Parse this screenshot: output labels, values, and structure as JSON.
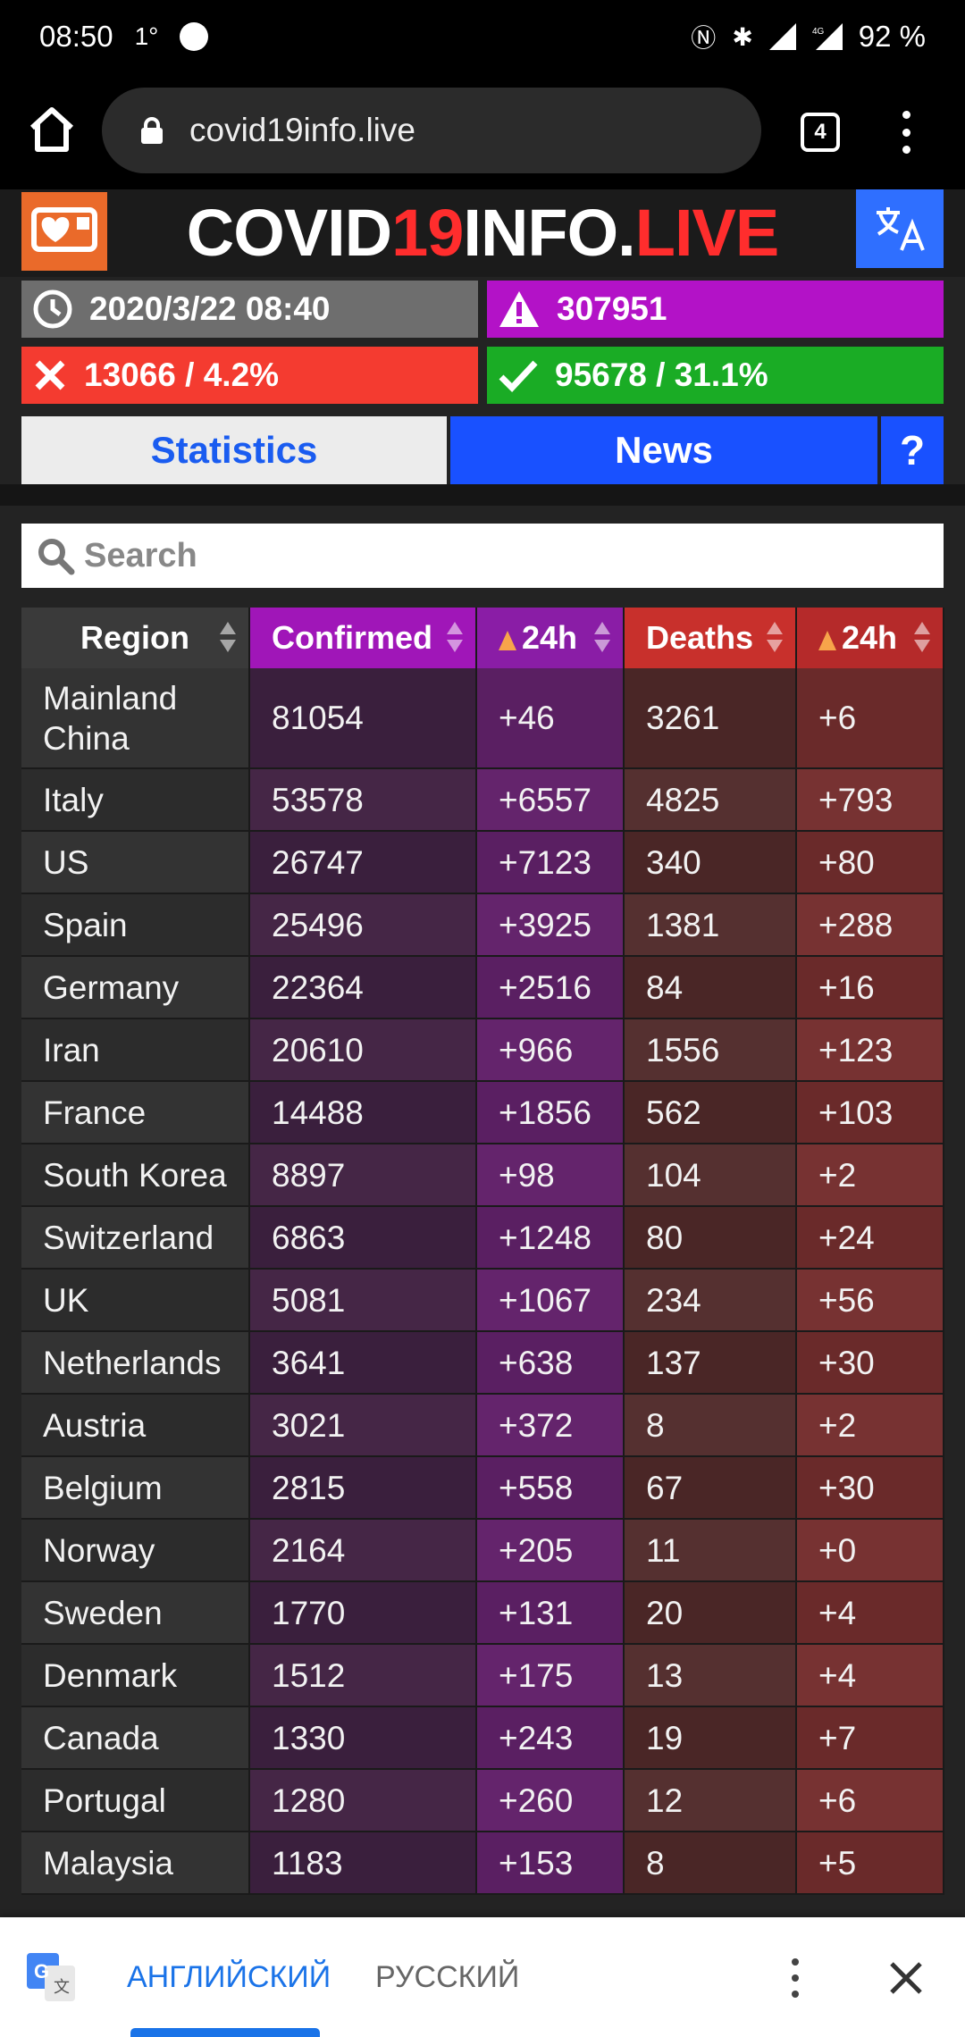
{
  "statusbar": {
    "time": "08:50",
    "temp": "1°",
    "battery": "92 %"
  },
  "browser": {
    "url": "covid19info.live",
    "tab_count": "4"
  },
  "site": {
    "title_a": "COVID",
    "title_b": "19",
    "title_c": "INFO.",
    "title_d": "LIVE"
  },
  "summary": {
    "updated": "2020/3/22 08:40",
    "active": "307951",
    "deaths": "13066 / 4.2%",
    "recovered": "95678 / 31.1%"
  },
  "tabs": {
    "statistics": "Statistics",
    "news": "News",
    "help": "?"
  },
  "search": {
    "placeholder": "Search"
  },
  "table": {
    "headers": {
      "region": "Region",
      "confirmed": "Confirmed",
      "confirmed_24h": "24h",
      "deaths": "Deaths",
      "deaths_24h": "24h"
    },
    "rows": [
      {
        "region": "Mainland China",
        "confirmed": "81054",
        "c24": "+46",
        "deaths": "3261",
        "d24": "+6"
      },
      {
        "region": "Italy",
        "confirmed": "53578",
        "c24": "+6557",
        "deaths": "4825",
        "d24": "+793"
      },
      {
        "region": "US",
        "confirmed": "26747",
        "c24": "+7123",
        "deaths": "340",
        "d24": "+80"
      },
      {
        "region": "Spain",
        "confirmed": "25496",
        "c24": "+3925",
        "deaths": "1381",
        "d24": "+288"
      },
      {
        "region": "Germany",
        "confirmed": "22364",
        "c24": "+2516",
        "deaths": "84",
        "d24": "+16"
      },
      {
        "region": "Iran",
        "confirmed": "20610",
        "c24": "+966",
        "deaths": "1556",
        "d24": "+123"
      },
      {
        "region": "France",
        "confirmed": "14488",
        "c24": "+1856",
        "deaths": "562",
        "d24": "+103"
      },
      {
        "region": "South Korea",
        "confirmed": "8897",
        "c24": "+98",
        "deaths": "104",
        "d24": "+2"
      },
      {
        "region": "Switzerland",
        "confirmed": "6863",
        "c24": "+1248",
        "deaths": "80",
        "d24": "+24"
      },
      {
        "region": "UK",
        "confirmed": "5081",
        "c24": "+1067",
        "deaths": "234",
        "d24": "+56"
      },
      {
        "region": "Netherlands",
        "confirmed": "3641",
        "c24": "+638",
        "deaths": "137",
        "d24": "+30"
      },
      {
        "region": "Austria",
        "confirmed": "3021",
        "c24": "+372",
        "deaths": "8",
        "d24": "+2"
      },
      {
        "region": "Belgium",
        "confirmed": "2815",
        "c24": "+558",
        "deaths": "67",
        "d24": "+30"
      },
      {
        "region": "Norway",
        "confirmed": "2164",
        "c24": "+205",
        "deaths": "11",
        "d24": "+0"
      },
      {
        "region": "Sweden",
        "confirmed": "1770",
        "c24": "+131",
        "deaths": "20",
        "d24": "+4"
      },
      {
        "region": "Denmark",
        "confirmed": "1512",
        "c24": "+175",
        "deaths": "13",
        "d24": "+4"
      },
      {
        "region": "Canada",
        "confirmed": "1330",
        "c24": "+243",
        "deaths": "19",
        "d24": "+7"
      },
      {
        "region": "Portugal",
        "confirmed": "1280",
        "c24": "+260",
        "deaths": "12",
        "d24": "+6"
      },
      {
        "region": "Malaysia",
        "confirmed": "1183",
        "c24": "+153",
        "deaths": "8",
        "d24": "+5"
      }
    ]
  },
  "translate_bar": {
    "lang_source": "АНГЛИЙСКИЙ",
    "lang_target": "РУССКИЙ"
  },
  "colors": {
    "accent_blue": "#1951ff",
    "confirmed_purple": "#a016b8",
    "deaths_red": "#c8302c",
    "recovered_green": "#1aac25",
    "active_purple": "#b312c7",
    "logo_orange": "#ea6a2a"
  },
  "icons": {
    "clock": "clock-icon",
    "warning": "warning-icon",
    "cross": "cross-icon",
    "check": "check-icon",
    "search": "search-icon",
    "translate": "translate-icon",
    "home": "home-icon",
    "lock": "lock-icon"
  }
}
